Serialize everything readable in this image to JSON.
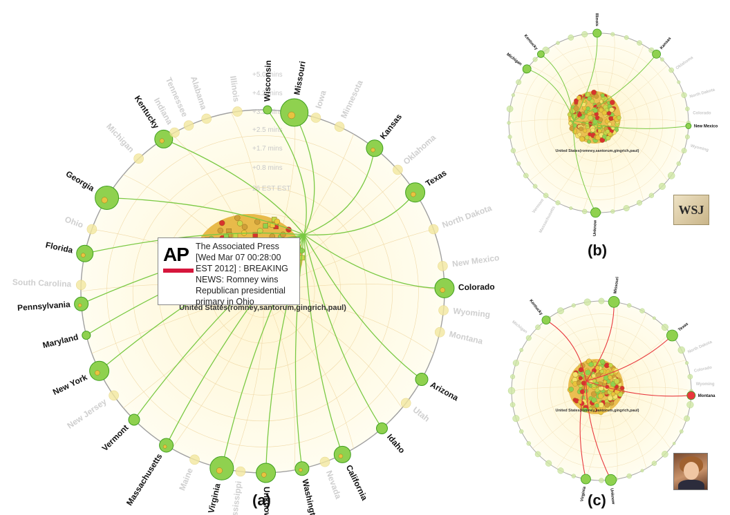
{
  "panels": {
    "a": {
      "label": "(a)",
      "center_label": "United States(romney,santorum,gingrich,paul)",
      "time_ticks": [
        "+5.0 mins",
        "+4.2 mins",
        "+3.3 mins",
        "+2.5 mins",
        "+1.7 mins",
        "+0.8 mins",
        "26 EST EST"
      ],
      "active_states": [
        "Wisconsin",
        "Missouri",
        "Kansas",
        "Texas",
        "Colorado",
        "Arizona",
        "Idaho",
        "California",
        "Washingt",
        "Unknow",
        "Virginia",
        "Massachusetts",
        "Vermont",
        "New York",
        "Maryland",
        "Pennsylvania",
        "Florida",
        "Georgia",
        "Kentucky"
      ],
      "faded_states": [
        "Illinois",
        "Alabama",
        "Tennessee",
        "Indiana",
        "Michigan",
        "Ohio",
        "South Carolina",
        "New Jersey",
        "Maine",
        "Mississippi",
        "Nevada",
        "Utah",
        "Montana",
        "Wyoming",
        "New Mexico",
        "North Dakota",
        "Oklahoma",
        "Minnesota",
        "Iowa"
      ]
    },
    "b": {
      "label": "(b)",
      "center_label": "United States(romney,santorum,gingrich,paul)",
      "labels": [
        "Illinois",
        "Kansas",
        "Kentucky",
        "Michigan",
        "New Mexico",
        "Unknow",
        "Oklahoma",
        "North Dakota",
        "Colorado",
        "Wyoming",
        "Massachusetts",
        "Vermont"
      ],
      "badge": "WSJ"
    },
    "c": {
      "label": "(c)",
      "center_label": "United States(romney,santorum,gingrich,paul)",
      "labels": [
        "Missouri",
        "Kentucky",
        "Texas",
        "Montana",
        "Virginia",
        "Unknow",
        "Michigan",
        "Colorado",
        "Wyoming",
        "North Dakota"
      ],
      "badge": "photo"
    }
  },
  "tooltip": {
    "logo": "AP",
    "text": "The Associated Press [Wed Mar 07 00:28:00 EST 2012] : BREAKING NEWS: Romney wins Republican presidential primary in Ohio"
  },
  "colors": {
    "active": "#8fd14f",
    "active_stroke": "#3f9e1f",
    "faded_text": "#cfcfcf",
    "link_green": "#7ac943",
    "link_red": "#e8383d",
    "disc_bg": "#fffbe6"
  }
}
